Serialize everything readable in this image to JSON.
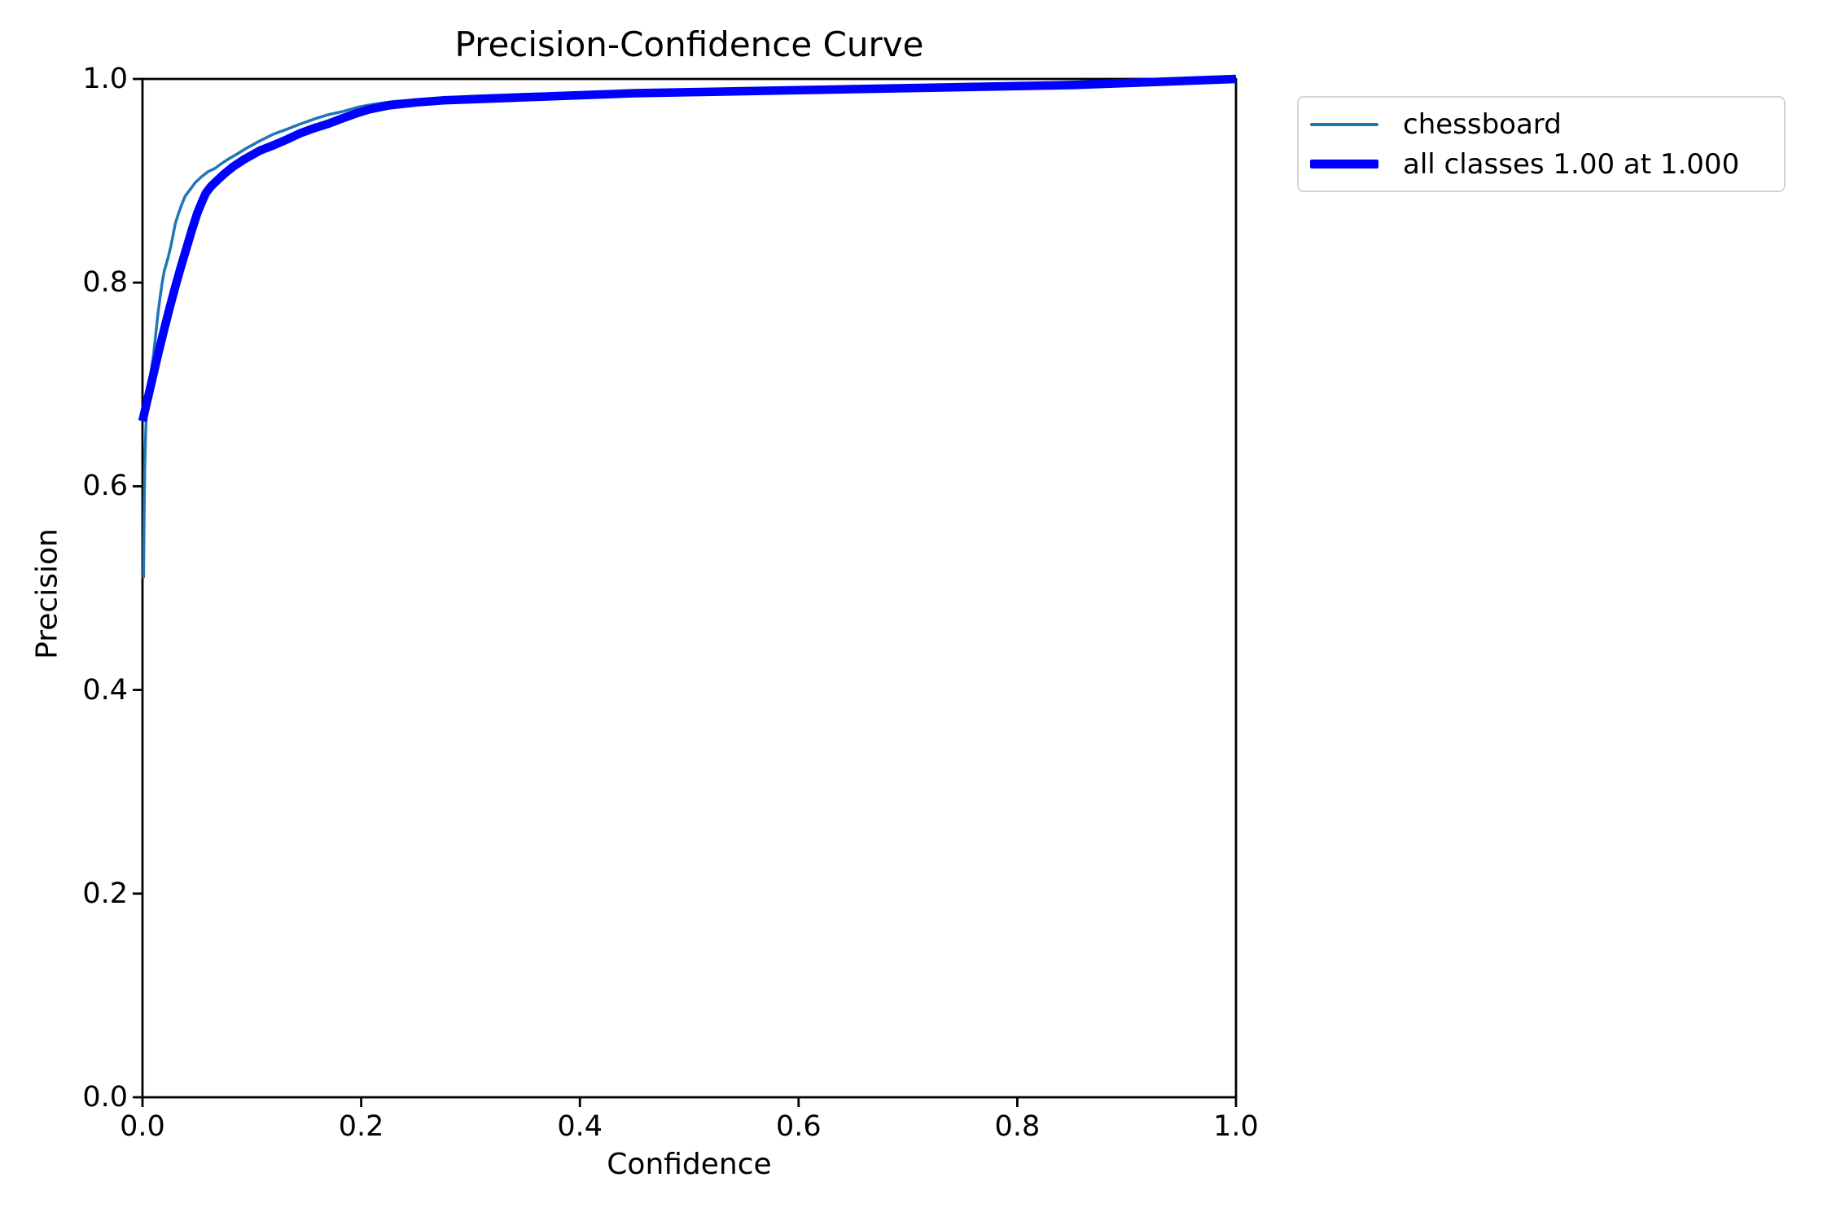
{
  "figure": {
    "title": "Precision-Confidence Curve",
    "xlabel": "Confidence",
    "ylabel": "Precision"
  },
  "legend": {
    "position": "outside-upper-right",
    "entries": [
      {
        "label": "chessboard",
        "color": "#1f77b4",
        "thickness": 4
      },
      {
        "label": "all classes 1.00 at 1.000",
        "color": "#0000ff",
        "thickness": 11
      }
    ]
  },
  "chart_data": {
    "type": "line",
    "title": "Precision-Confidence Curve",
    "xlabel": "Confidence",
    "ylabel": "Precision",
    "xlim": [
      0.0,
      1.0
    ],
    "ylim": [
      0.0,
      1.0
    ],
    "xticks": [
      "0.0",
      "0.2",
      "0.4",
      "0.6",
      "0.8",
      "1.0"
    ],
    "yticks": [
      "0.0",
      "0.2",
      "0.4",
      "0.6",
      "0.8",
      "1.0"
    ],
    "grid": false,
    "legend_position": "upper right outside",
    "axis_color": "#000000",
    "series": [
      {
        "name": "chessboard",
        "color": "#1f77b4",
        "linewidth": 3.5,
        "points": [
          [
            0.001,
            0.51
          ],
          [
            0.0015,
            0.57
          ],
          [
            0.002,
            0.615
          ],
          [
            0.003,
            0.655
          ],
          [
            0.004,
            0.682
          ],
          [
            0.006,
            0.7
          ],
          [
            0.008,
            0.714
          ],
          [
            0.01,
            0.728
          ],
          [
            0.012,
            0.748
          ],
          [
            0.014,
            0.768
          ],
          [
            0.016,
            0.785
          ],
          [
            0.018,
            0.8
          ],
          [
            0.02,
            0.812
          ],
          [
            0.022,
            0.819
          ],
          [
            0.024,
            0.827
          ],
          [
            0.026,
            0.836
          ],
          [
            0.028,
            0.847
          ],
          [
            0.03,
            0.858
          ],
          [
            0.033,
            0.868
          ],
          [
            0.036,
            0.877
          ],
          [
            0.039,
            0.885
          ],
          [
            0.044,
            0.892
          ],
          [
            0.048,
            0.898
          ],
          [
            0.054,
            0.904
          ],
          [
            0.06,
            0.909
          ],
          [
            0.066,
            0.912
          ],
          [
            0.071,
            0.916
          ],
          [
            0.078,
            0.921
          ],
          [
            0.086,
            0.926
          ],
          [
            0.095,
            0.932
          ],
          [
            0.107,
            0.939
          ],
          [
            0.12,
            0.946
          ],
          [
            0.133,
            0.951
          ],
          [
            0.145,
            0.956
          ],
          [
            0.158,
            0.961
          ],
          [
            0.17,
            0.965
          ],
          [
            0.183,
            0.968
          ],
          [
            0.196,
            0.972
          ],
          [
            0.21,
            0.975
          ],
          [
            0.23,
            0.978
          ],
          [
            0.26,
            0.98
          ],
          [
            0.3,
            0.983
          ],
          [
            0.35,
            0.985
          ],
          [
            0.4,
            0.986
          ],
          [
            0.45,
            0.988
          ],
          [
            0.5,
            0.989
          ],
          [
            0.55,
            0.99
          ],
          [
            0.6,
            0.991
          ],
          [
            0.65,
            0.992
          ],
          [
            0.7,
            0.993
          ],
          [
            0.75,
            0.994
          ],
          [
            0.8,
            0.995
          ],
          [
            0.85,
            0.997
          ],
          [
            0.9,
            0.998
          ],
          [
            0.95,
            0.999
          ],
          [
            1.0,
            1.0
          ]
        ]
      },
      {
        "name": "all classes 1.00 at 1.000",
        "color": "#0000ff",
        "linewidth": 10.5,
        "points": [
          [
            0.0,
            0.664
          ],
          [
            0.005,
            0.687
          ],
          [
            0.01,
            0.71
          ],
          [
            0.015,
            0.733
          ],
          [
            0.02,
            0.755
          ],
          [
            0.025,
            0.776
          ],
          [
            0.03,
            0.796
          ],
          [
            0.035,
            0.815
          ],
          [
            0.04,
            0.833
          ],
          [
            0.045,
            0.851
          ],
          [
            0.05,
            0.868
          ],
          [
            0.055,
            0.881
          ],
          [
            0.058,
            0.888
          ],
          [
            0.063,
            0.895
          ],
          [
            0.068,
            0.9
          ],
          [
            0.075,
            0.907
          ],
          [
            0.083,
            0.914
          ],
          [
            0.093,
            0.921
          ],
          [
            0.108,
            0.93
          ],
          [
            0.12,
            0.935
          ],
          [
            0.133,
            0.941
          ],
          [
            0.145,
            0.947
          ],
          [
            0.158,
            0.952
          ],
          [
            0.17,
            0.956
          ],
          [
            0.182,
            0.961
          ],
          [
            0.195,
            0.966
          ],
          [
            0.207,
            0.97
          ],
          [
            0.225,
            0.974
          ],
          [
            0.25,
            0.977
          ],
          [
            0.275,
            0.979
          ],
          [
            0.3,
            0.98
          ],
          [
            0.35,
            0.982
          ],
          [
            0.4,
            0.984
          ],
          [
            0.45,
            0.986
          ],
          [
            0.5,
            0.987
          ],
          [
            0.55,
            0.988
          ],
          [
            0.6,
            0.989
          ],
          [
            0.65,
            0.99
          ],
          [
            0.7,
            0.991
          ],
          [
            0.75,
            0.992
          ],
          [
            0.8,
            0.993
          ],
          [
            0.85,
            0.994
          ],
          [
            0.9,
            0.996
          ],
          [
            0.95,
            0.998
          ],
          [
            1.0,
            1.0
          ]
        ]
      }
    ]
  }
}
